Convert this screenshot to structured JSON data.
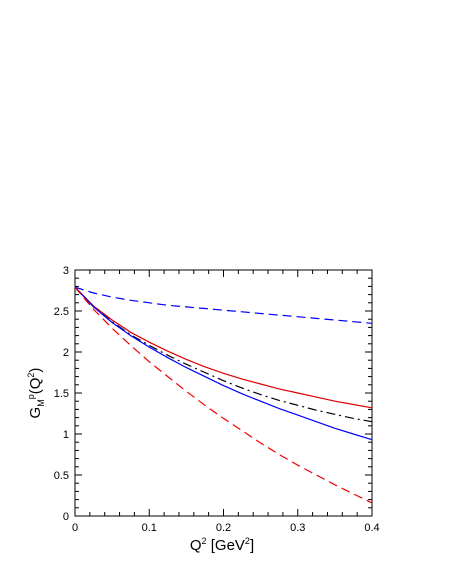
{
  "chart_data": {
    "type": "line",
    "title": "",
    "xlabel": {
      "base": "Q",
      "sup": "2",
      "unit_pre": " [GeV",
      "unit_sup": "2",
      "unit_post": "]"
    },
    "ylabel": {
      "base": "G",
      "sub": "M",
      "sup": "p",
      "arg_pre": "(Q",
      "arg_sup": "2",
      "arg_post": ")"
    },
    "xlim": [
      0,
      0.4
    ],
    "ylim": [
      0,
      3
    ],
    "xticks": [
      "0",
      "0.1",
      "0.2",
      "0.3",
      "0.4"
    ],
    "yticks": [
      "0",
      "0.5",
      "1",
      "1.5",
      "2",
      "2.5",
      "3"
    ],
    "grid": false,
    "legend": "none",
    "x": [
      0,
      0.025,
      0.05,
      0.075,
      0.1,
      0.125,
      0.15,
      0.175,
      0.2,
      0.225,
      0.25,
      0.275,
      0.3,
      0.325,
      0.35,
      0.375,
      0.4
    ],
    "series": [
      {
        "color": "#0000ff",
        "dash": "dashed",
        "values": [
          2.79,
          2.72,
          2.67,
          2.63,
          2.6,
          2.57,
          2.55,
          2.53,
          2.51,
          2.49,
          2.47,
          2.45,
          2.43,
          2.41,
          2.39,
          2.37,
          2.35
        ]
      },
      {
        "color": "#dd0000",
        "dash": "solid",
        "values": [
          2.79,
          2.56,
          2.39,
          2.24,
          2.12,
          2.01,
          1.91,
          1.82,
          1.74,
          1.67,
          1.61,
          1.55,
          1.5,
          1.45,
          1.4,
          1.36,
          1.32
        ]
      },
      {
        "color": "#000000",
        "dash": "dashdot",
        "values": [
          2.79,
          2.55,
          2.37,
          2.21,
          2.08,
          1.96,
          1.85,
          1.75,
          1.65,
          1.56,
          1.48,
          1.41,
          1.35,
          1.29,
          1.24,
          1.19,
          1.15
        ]
      },
      {
        "color": "#0000ff",
        "dash": "solid",
        "values": [
          2.79,
          2.55,
          2.36,
          2.2,
          2.06,
          1.93,
          1.81,
          1.7,
          1.59,
          1.49,
          1.4,
          1.31,
          1.23,
          1.15,
          1.07,
          1.0,
          0.93
        ]
      },
      {
        "color": "#ee0000",
        "dash": "dashed",
        "values": [
          2.79,
          2.52,
          2.29,
          2.08,
          1.88,
          1.7,
          1.52,
          1.35,
          1.19,
          1.04,
          0.89,
          0.75,
          0.62,
          0.5,
          0.38,
          0.27,
          0.16
        ]
      }
    ]
  }
}
